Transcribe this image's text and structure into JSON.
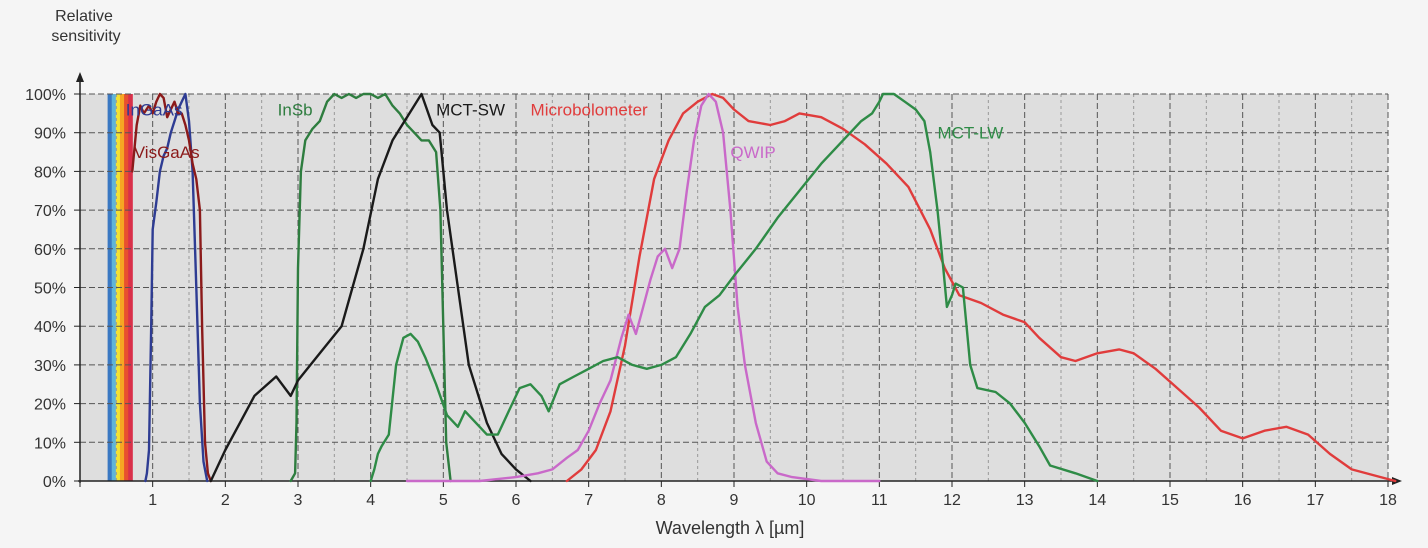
{
  "chart_data": {
    "type": "line",
    "ylabel": [
      "Relative",
      "sensitivity"
    ],
    "xlabel": "Wavelength λ [µm]",
    "xlim": [
      0,
      18
    ],
    "ylim": [
      0,
      100
    ],
    "x_ticks": [
      "",
      "1",
      "2",
      "3",
      "4",
      "5",
      "6",
      "7",
      "8",
      "9",
      "10",
      "11",
      "12",
      "13",
      "14",
      "15",
      "16",
      "17",
      "18"
    ],
    "y_ticks": [
      "0%",
      "10%",
      "20%",
      "30%",
      "40%",
      "50%",
      "60%",
      "70%",
      "80%",
      "90%",
      "100%"
    ],
    "grid": true,
    "visible_spectrum": {
      "range": [
        0.38,
        0.72
      ],
      "colors": [
        "#3a78c2",
        "#5fb4d8",
        "#f2e233",
        "#f6a623",
        "#e8502f",
        "#d9304a"
      ]
    },
    "series": [
      {
        "name": "InGaAs",
        "color": "#2e3c93",
        "label_at": [
          0.63,
          96
        ],
        "points": [
          [
            0.9,
            0
          ],
          [
            0.92,
            2
          ],
          [
            0.95,
            8
          ],
          [
            0.98,
            40
          ],
          [
            1.0,
            65
          ],
          [
            1.05,
            72
          ],
          [
            1.1,
            80
          ],
          [
            1.15,
            84
          ],
          [
            1.2,
            86
          ],
          [
            1.25,
            90
          ],
          [
            1.3,
            93
          ],
          [
            1.35,
            96
          ],
          [
            1.4,
            98
          ],
          [
            1.45,
            100
          ],
          [
            1.5,
            93
          ],
          [
            1.55,
            80
          ],
          [
            1.6,
            50
          ],
          [
            1.65,
            20
          ],
          [
            1.7,
            5
          ],
          [
            1.75,
            0
          ]
        ]
      },
      {
        "name": "VisGaAs",
        "color": "#8b1a1a",
        "label_at": [
          0.74,
          85
        ],
        "points": [
          [
            0.72,
            80
          ],
          [
            0.78,
            92
          ],
          [
            0.83,
            97
          ],
          [
            0.88,
            95
          ],
          [
            0.95,
            97
          ],
          [
            1.0,
            95
          ],
          [
            1.05,
            98
          ],
          [
            1.1,
            100
          ],
          [
            1.15,
            99
          ],
          [
            1.2,
            94
          ],
          [
            1.25,
            96
          ],
          [
            1.3,
            98
          ],
          [
            1.35,
            95
          ],
          [
            1.4,
            95
          ],
          [
            1.45,
            92
          ],
          [
            1.5,
            88
          ],
          [
            1.55,
            82
          ],
          [
            1.6,
            78
          ],
          [
            1.65,
            70
          ],
          [
            1.68,
            40
          ],
          [
            1.72,
            10
          ],
          [
            1.76,
            2
          ],
          [
            1.8,
            0
          ]
        ]
      },
      {
        "name": "InSb",
        "color": "#2e7d3f",
        "label_at": [
          2.72,
          96
        ],
        "points": [
          [
            2.9,
            0
          ],
          [
            2.96,
            2
          ],
          [
            2.98,
            15
          ],
          [
            3.0,
            55
          ],
          [
            3.04,
            80
          ],
          [
            3.1,
            88
          ],
          [
            3.2,
            91
          ],
          [
            3.3,
            93
          ],
          [
            3.4,
            98
          ],
          [
            3.5,
            100
          ],
          [
            3.6,
            99
          ],
          [
            3.7,
            100
          ],
          [
            3.8,
            99
          ],
          [
            3.9,
            100
          ],
          [
            4.0,
            100
          ],
          [
            4.1,
            99
          ],
          [
            4.2,
            100
          ],
          [
            4.3,
            97
          ],
          [
            4.4,
            95
          ],
          [
            4.5,
            92
          ],
          [
            4.6,
            90
          ],
          [
            4.7,
            88
          ],
          [
            4.8,
            88
          ],
          [
            4.9,
            85
          ],
          [
            4.96,
            70
          ],
          [
            5.0,
            40
          ],
          [
            5.04,
            10
          ],
          [
            5.1,
            0
          ]
        ]
      },
      {
        "name": "MCT-SW",
        "color": "#1a1a1a",
        "label_at": [
          4.9,
          96
        ],
        "points": [
          [
            1.8,
            0
          ],
          [
            2.0,
            8
          ],
          [
            2.2,
            15
          ],
          [
            2.4,
            22
          ],
          [
            2.7,
            27
          ],
          [
            2.9,
            22
          ],
          [
            3.0,
            26
          ],
          [
            3.3,
            33
          ],
          [
            3.6,
            40
          ],
          [
            3.9,
            60
          ],
          [
            4.1,
            78
          ],
          [
            4.3,
            88
          ],
          [
            4.5,
            94
          ],
          [
            4.7,
            100
          ],
          [
            4.85,
            92
          ],
          [
            4.95,
            90
          ],
          [
            5.05,
            70
          ],
          [
            5.2,
            50
          ],
          [
            5.35,
            30
          ],
          [
            5.6,
            15
          ],
          [
            5.8,
            7
          ],
          [
            6.0,
            3
          ],
          [
            6.2,
            0
          ]
        ]
      },
      {
        "name": "Microbolometer",
        "color": "#e03c3c",
        "label_at": [
          6.2,
          96
        ],
        "points": [
          [
            6.7,
            0
          ],
          [
            6.9,
            3
          ],
          [
            7.1,
            8
          ],
          [
            7.3,
            18
          ],
          [
            7.5,
            35
          ],
          [
            7.7,
            58
          ],
          [
            7.9,
            78
          ],
          [
            8.1,
            88
          ],
          [
            8.3,
            95
          ],
          [
            8.5,
            98
          ],
          [
            8.7,
            100
          ],
          [
            8.85,
            99
          ],
          [
            9.0,
            96
          ],
          [
            9.2,
            93
          ],
          [
            9.5,
            92
          ],
          [
            9.7,
            93
          ],
          [
            9.9,
            95
          ],
          [
            10.2,
            94
          ],
          [
            10.5,
            91
          ],
          [
            10.8,
            87
          ],
          [
            11.1,
            82
          ],
          [
            11.4,
            76
          ],
          [
            11.7,
            65
          ],
          [
            11.9,
            55
          ],
          [
            12.1,
            48
          ],
          [
            12.4,
            46
          ],
          [
            12.7,
            43
          ],
          [
            13.0,
            41
          ],
          [
            13.2,
            37
          ],
          [
            13.5,
            32
          ],
          [
            13.7,
            31
          ],
          [
            14.0,
            33
          ],
          [
            14.3,
            34
          ],
          [
            14.5,
            33
          ],
          [
            14.8,
            29
          ],
          [
            15.1,
            24
          ],
          [
            15.4,
            19
          ],
          [
            15.7,
            13
          ],
          [
            16.0,
            11
          ],
          [
            16.3,
            13
          ],
          [
            16.6,
            14
          ],
          [
            16.9,
            12
          ],
          [
            17.2,
            7
          ],
          [
            17.5,
            3
          ],
          [
            17.9,
            1
          ],
          [
            18.1,
            0
          ]
        ]
      },
      {
        "name": "QWIP",
        "color": "#c969c9",
        "label_at": [
          8.95,
          85
        ],
        "points": [
          [
            4.5,
            0
          ],
          [
            5.0,
            0
          ],
          [
            5.5,
            0
          ],
          [
            6.0,
            1
          ],
          [
            6.3,
            2
          ],
          [
            6.5,
            3
          ],
          [
            6.7,
            6
          ],
          [
            6.85,
            8
          ],
          [
            7.0,
            13
          ],
          [
            7.15,
            20
          ],
          [
            7.3,
            26
          ],
          [
            7.45,
            37
          ],
          [
            7.55,
            43
          ],
          [
            7.65,
            38
          ],
          [
            7.75,
            45
          ],
          [
            7.85,
            52
          ],
          [
            7.95,
            58
          ],
          [
            8.05,
            60
          ],
          [
            8.15,
            55
          ],
          [
            8.25,
            60
          ],
          [
            8.35,
            75
          ],
          [
            8.45,
            88
          ],
          [
            8.55,
            97
          ],
          [
            8.65,
            100
          ],
          [
            8.75,
            98
          ],
          [
            8.85,
            90
          ],
          [
            8.95,
            70
          ],
          [
            9.05,
            45
          ],
          [
            9.15,
            30
          ],
          [
            9.3,
            15
          ],
          [
            9.45,
            5
          ],
          [
            9.6,
            2
          ],
          [
            9.8,
            1
          ],
          [
            10.2,
            0
          ],
          [
            11.0,
            0
          ]
        ]
      },
      {
        "name": "MCT-LW",
        "color": "#2e8b46",
        "label_at": [
          11.8,
          90
        ],
        "points": [
          [
            4.0,
            0
          ],
          [
            4.05,
            3
          ],
          [
            4.1,
            7
          ],
          [
            4.15,
            9
          ],
          [
            4.25,
            12
          ],
          [
            4.35,
            30
          ],
          [
            4.45,
            37
          ],
          [
            4.55,
            38
          ],
          [
            4.65,
            36
          ],
          [
            4.75,
            32
          ],
          [
            4.9,
            25
          ],
          [
            5.05,
            17
          ],
          [
            5.2,
            14
          ],
          [
            5.3,
            18
          ],
          [
            5.45,
            15
          ],
          [
            5.6,
            12
          ],
          [
            5.75,
            12
          ],
          [
            5.9,
            18
          ],
          [
            6.05,
            24
          ],
          [
            6.2,
            25
          ],
          [
            6.35,
            22
          ],
          [
            6.45,
            18
          ],
          [
            6.6,
            25
          ],
          [
            6.8,
            27
          ],
          [
            7.0,
            29
          ],
          [
            7.2,
            31
          ],
          [
            7.4,
            32
          ],
          [
            7.6,
            30
          ],
          [
            7.8,
            29
          ],
          [
            8.0,
            30
          ],
          [
            8.2,
            32
          ],
          [
            8.4,
            38
          ],
          [
            8.6,
            45
          ],
          [
            8.8,
            48
          ],
          [
            9.0,
            53
          ],
          [
            9.3,
            60
          ],
          [
            9.6,
            68
          ],
          [
            9.9,
            75
          ],
          [
            10.2,
            82
          ],
          [
            10.5,
            88
          ],
          [
            10.75,
            93
          ],
          [
            10.9,
            95
          ],
          [
            11.0,
            98
          ],
          [
            11.05,
            100
          ],
          [
            11.2,
            100
          ],
          [
            11.35,
            98
          ],
          [
            11.5,
            96
          ],
          [
            11.62,
            93
          ],
          [
            11.7,
            85
          ],
          [
            11.8,
            70
          ],
          [
            11.88,
            55
          ],
          [
            11.93,
            45
          ],
          [
            12.0,
            48
          ],
          [
            12.05,
            51
          ],
          [
            12.15,
            50
          ],
          [
            12.25,
            30
          ],
          [
            12.35,
            24
          ],
          [
            12.6,
            23
          ],
          [
            12.8,
            20
          ],
          [
            13.0,
            15
          ],
          [
            13.2,
            9
          ],
          [
            13.35,
            4
          ],
          [
            13.7,
            2
          ],
          [
            14.0,
            0
          ]
        ]
      }
    ]
  }
}
